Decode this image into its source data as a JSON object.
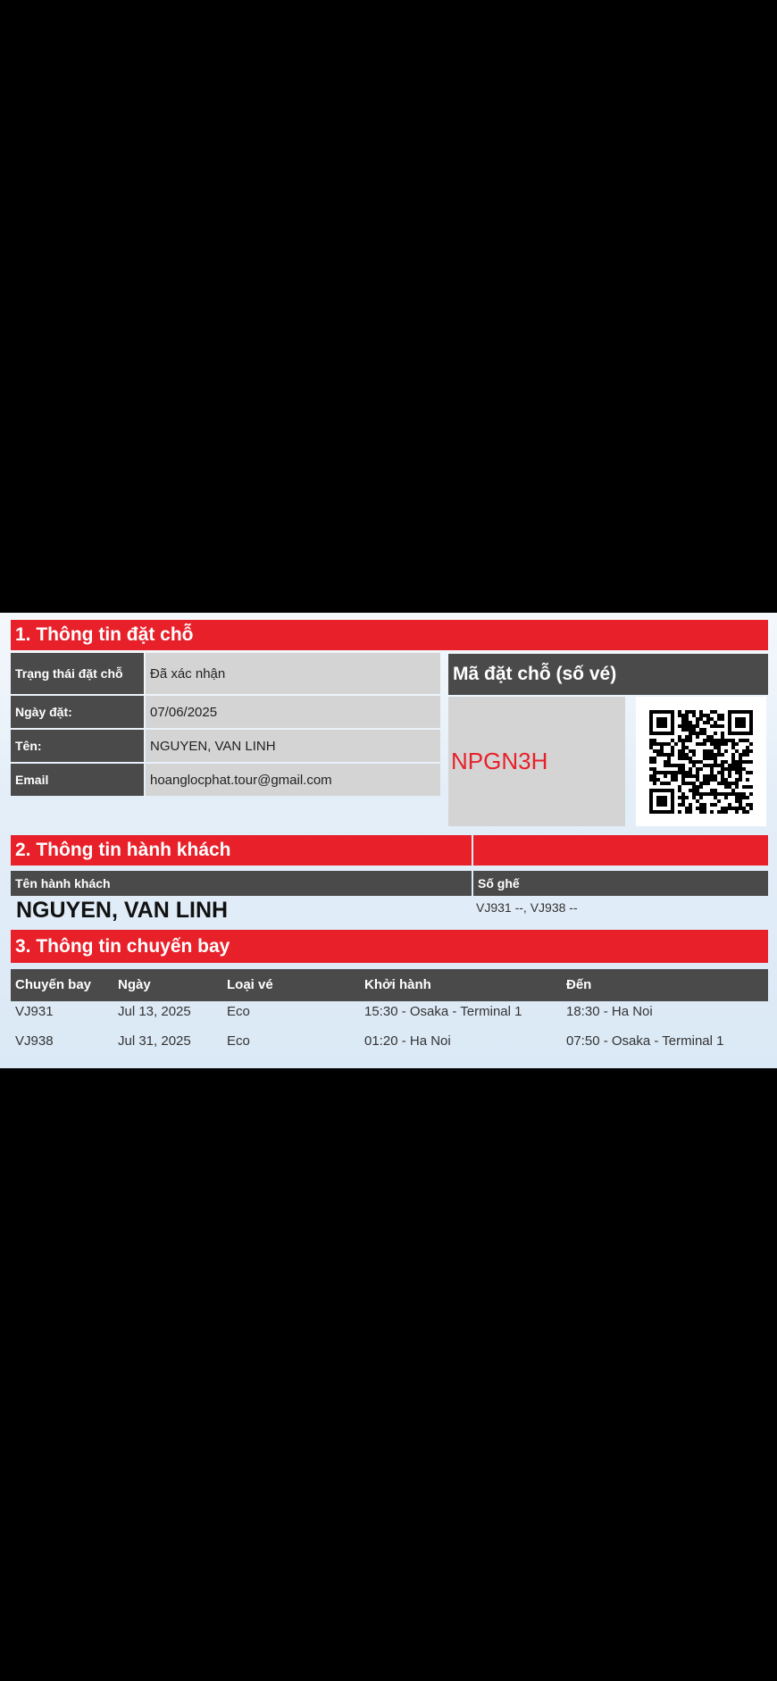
{
  "section1": {
    "title": "1. Thông tin đặt chỗ",
    "rows": [
      {
        "label": "Trạng thái đặt chỗ",
        "value": "Đã xác nhận"
      },
      {
        "label": "Ngày đặt:",
        "value": "07/06/2025"
      },
      {
        "label": "Tên:",
        "value": "NGUYEN, VAN LINH"
      },
      {
        "label": "Email",
        "value": "hoanglocphat.tour@gmail.com"
      }
    ],
    "code_header": "Mã đặt chỗ (số vé)",
    "booking_code": "NPGN3H",
    "booking_code_color": "#e8202a"
  },
  "section2": {
    "title": "2. Thông tin hành khách",
    "col_name": "Tên hành khách",
    "col_seat": "Số ghế",
    "passenger_name": "NGUYEN, VAN LINH",
    "seats": "VJ931 --, VJ938 --"
  },
  "section3": {
    "title": "3. Thông tin chuyến bay",
    "headers": [
      "Chuyến bay",
      "Ngày",
      "Loại vé",
      "Khởi hành",
      "Đến"
    ],
    "rows": [
      [
        "VJ931",
        "Jul 13, 2025",
        "Eco",
        "15:30 - Osaka - Terminal 1",
        "18:30 - Ha Noi"
      ],
      [
        "VJ938",
        "Jul 31, 2025",
        "Eco",
        "01:20 - Ha Noi",
        "07:50 - Osaka - Terminal 1"
      ]
    ]
  },
  "colors": {
    "accent_red": "#e8202a",
    "header_dark": "#4a4a4a",
    "cell_gray": "#d4d4d4"
  }
}
